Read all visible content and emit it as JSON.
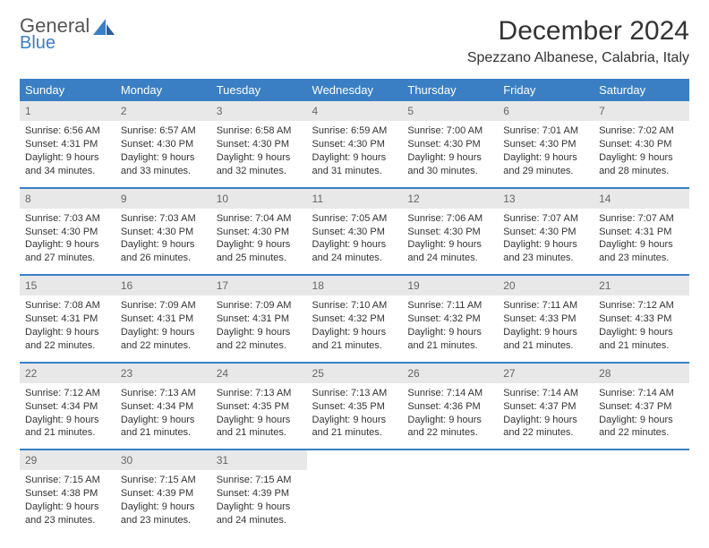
{
  "logo": {
    "word1": "General",
    "word2": "Blue",
    "brand_color": "#3a7fc4"
  },
  "title": "December 2024",
  "location": "Spezzano Albanese, Calabria, Italy",
  "header_bg": "#3a7fc4",
  "header_fg": "#ffffff",
  "daynum_bg": "#e8e8e8",
  "border_color": "#3a7fc4",
  "background": "#ffffff",
  "text_color": "#333333",
  "font_family": "Arial, Helvetica, sans-serif",
  "title_fontsize": 30,
  "location_fontsize": 16,
  "header_fontsize": 13,
  "cell_fontsize": 11,
  "day_headers": [
    "Sunday",
    "Monday",
    "Tuesday",
    "Wednesday",
    "Thursday",
    "Friday",
    "Saturday"
  ],
  "weeks": [
    [
      {
        "n": "1",
        "sr": "6:56 AM",
        "ss": "4:31 PM",
        "dl": "9 hours and 34 minutes."
      },
      {
        "n": "2",
        "sr": "6:57 AM",
        "ss": "4:30 PM",
        "dl": "9 hours and 33 minutes."
      },
      {
        "n": "3",
        "sr": "6:58 AM",
        "ss": "4:30 PM",
        "dl": "9 hours and 32 minutes."
      },
      {
        "n": "4",
        "sr": "6:59 AM",
        "ss": "4:30 PM",
        "dl": "9 hours and 31 minutes."
      },
      {
        "n": "5",
        "sr": "7:00 AM",
        "ss": "4:30 PM",
        "dl": "9 hours and 30 minutes."
      },
      {
        "n": "6",
        "sr": "7:01 AM",
        "ss": "4:30 PM",
        "dl": "9 hours and 29 minutes."
      },
      {
        "n": "7",
        "sr": "7:02 AM",
        "ss": "4:30 PM",
        "dl": "9 hours and 28 minutes."
      }
    ],
    [
      {
        "n": "8",
        "sr": "7:03 AM",
        "ss": "4:30 PM",
        "dl": "9 hours and 27 minutes."
      },
      {
        "n": "9",
        "sr": "7:03 AM",
        "ss": "4:30 PM",
        "dl": "9 hours and 26 minutes."
      },
      {
        "n": "10",
        "sr": "7:04 AM",
        "ss": "4:30 PM",
        "dl": "9 hours and 25 minutes."
      },
      {
        "n": "11",
        "sr": "7:05 AM",
        "ss": "4:30 PM",
        "dl": "9 hours and 24 minutes."
      },
      {
        "n": "12",
        "sr": "7:06 AM",
        "ss": "4:30 PM",
        "dl": "9 hours and 24 minutes."
      },
      {
        "n": "13",
        "sr": "7:07 AM",
        "ss": "4:30 PM",
        "dl": "9 hours and 23 minutes."
      },
      {
        "n": "14",
        "sr": "7:07 AM",
        "ss": "4:31 PM",
        "dl": "9 hours and 23 minutes."
      }
    ],
    [
      {
        "n": "15",
        "sr": "7:08 AM",
        "ss": "4:31 PM",
        "dl": "9 hours and 22 minutes."
      },
      {
        "n": "16",
        "sr": "7:09 AM",
        "ss": "4:31 PM",
        "dl": "9 hours and 22 minutes."
      },
      {
        "n": "17",
        "sr": "7:09 AM",
        "ss": "4:31 PM",
        "dl": "9 hours and 22 minutes."
      },
      {
        "n": "18",
        "sr": "7:10 AM",
        "ss": "4:32 PM",
        "dl": "9 hours and 21 minutes."
      },
      {
        "n": "19",
        "sr": "7:11 AM",
        "ss": "4:32 PM",
        "dl": "9 hours and 21 minutes."
      },
      {
        "n": "20",
        "sr": "7:11 AM",
        "ss": "4:33 PM",
        "dl": "9 hours and 21 minutes."
      },
      {
        "n": "21",
        "sr": "7:12 AM",
        "ss": "4:33 PM",
        "dl": "9 hours and 21 minutes."
      }
    ],
    [
      {
        "n": "22",
        "sr": "7:12 AM",
        "ss": "4:34 PM",
        "dl": "9 hours and 21 minutes."
      },
      {
        "n": "23",
        "sr": "7:13 AM",
        "ss": "4:34 PM",
        "dl": "9 hours and 21 minutes."
      },
      {
        "n": "24",
        "sr": "7:13 AM",
        "ss": "4:35 PM",
        "dl": "9 hours and 21 minutes."
      },
      {
        "n": "25",
        "sr": "7:13 AM",
        "ss": "4:35 PM",
        "dl": "9 hours and 21 minutes."
      },
      {
        "n": "26",
        "sr": "7:14 AM",
        "ss": "4:36 PM",
        "dl": "9 hours and 22 minutes."
      },
      {
        "n": "27",
        "sr": "7:14 AM",
        "ss": "4:37 PM",
        "dl": "9 hours and 22 minutes."
      },
      {
        "n": "28",
        "sr": "7:14 AM",
        "ss": "4:37 PM",
        "dl": "9 hours and 22 minutes."
      }
    ],
    [
      {
        "n": "29",
        "sr": "7:15 AM",
        "ss": "4:38 PM",
        "dl": "9 hours and 23 minutes."
      },
      {
        "n": "30",
        "sr": "7:15 AM",
        "ss": "4:39 PM",
        "dl": "9 hours and 23 minutes."
      },
      {
        "n": "31",
        "sr": "7:15 AM",
        "ss": "4:39 PM",
        "dl": "9 hours and 24 minutes."
      },
      null,
      null,
      null,
      null
    ]
  ],
  "labels": {
    "sunrise": "Sunrise:",
    "sunset": "Sunset:",
    "daylight": "Daylight:"
  }
}
